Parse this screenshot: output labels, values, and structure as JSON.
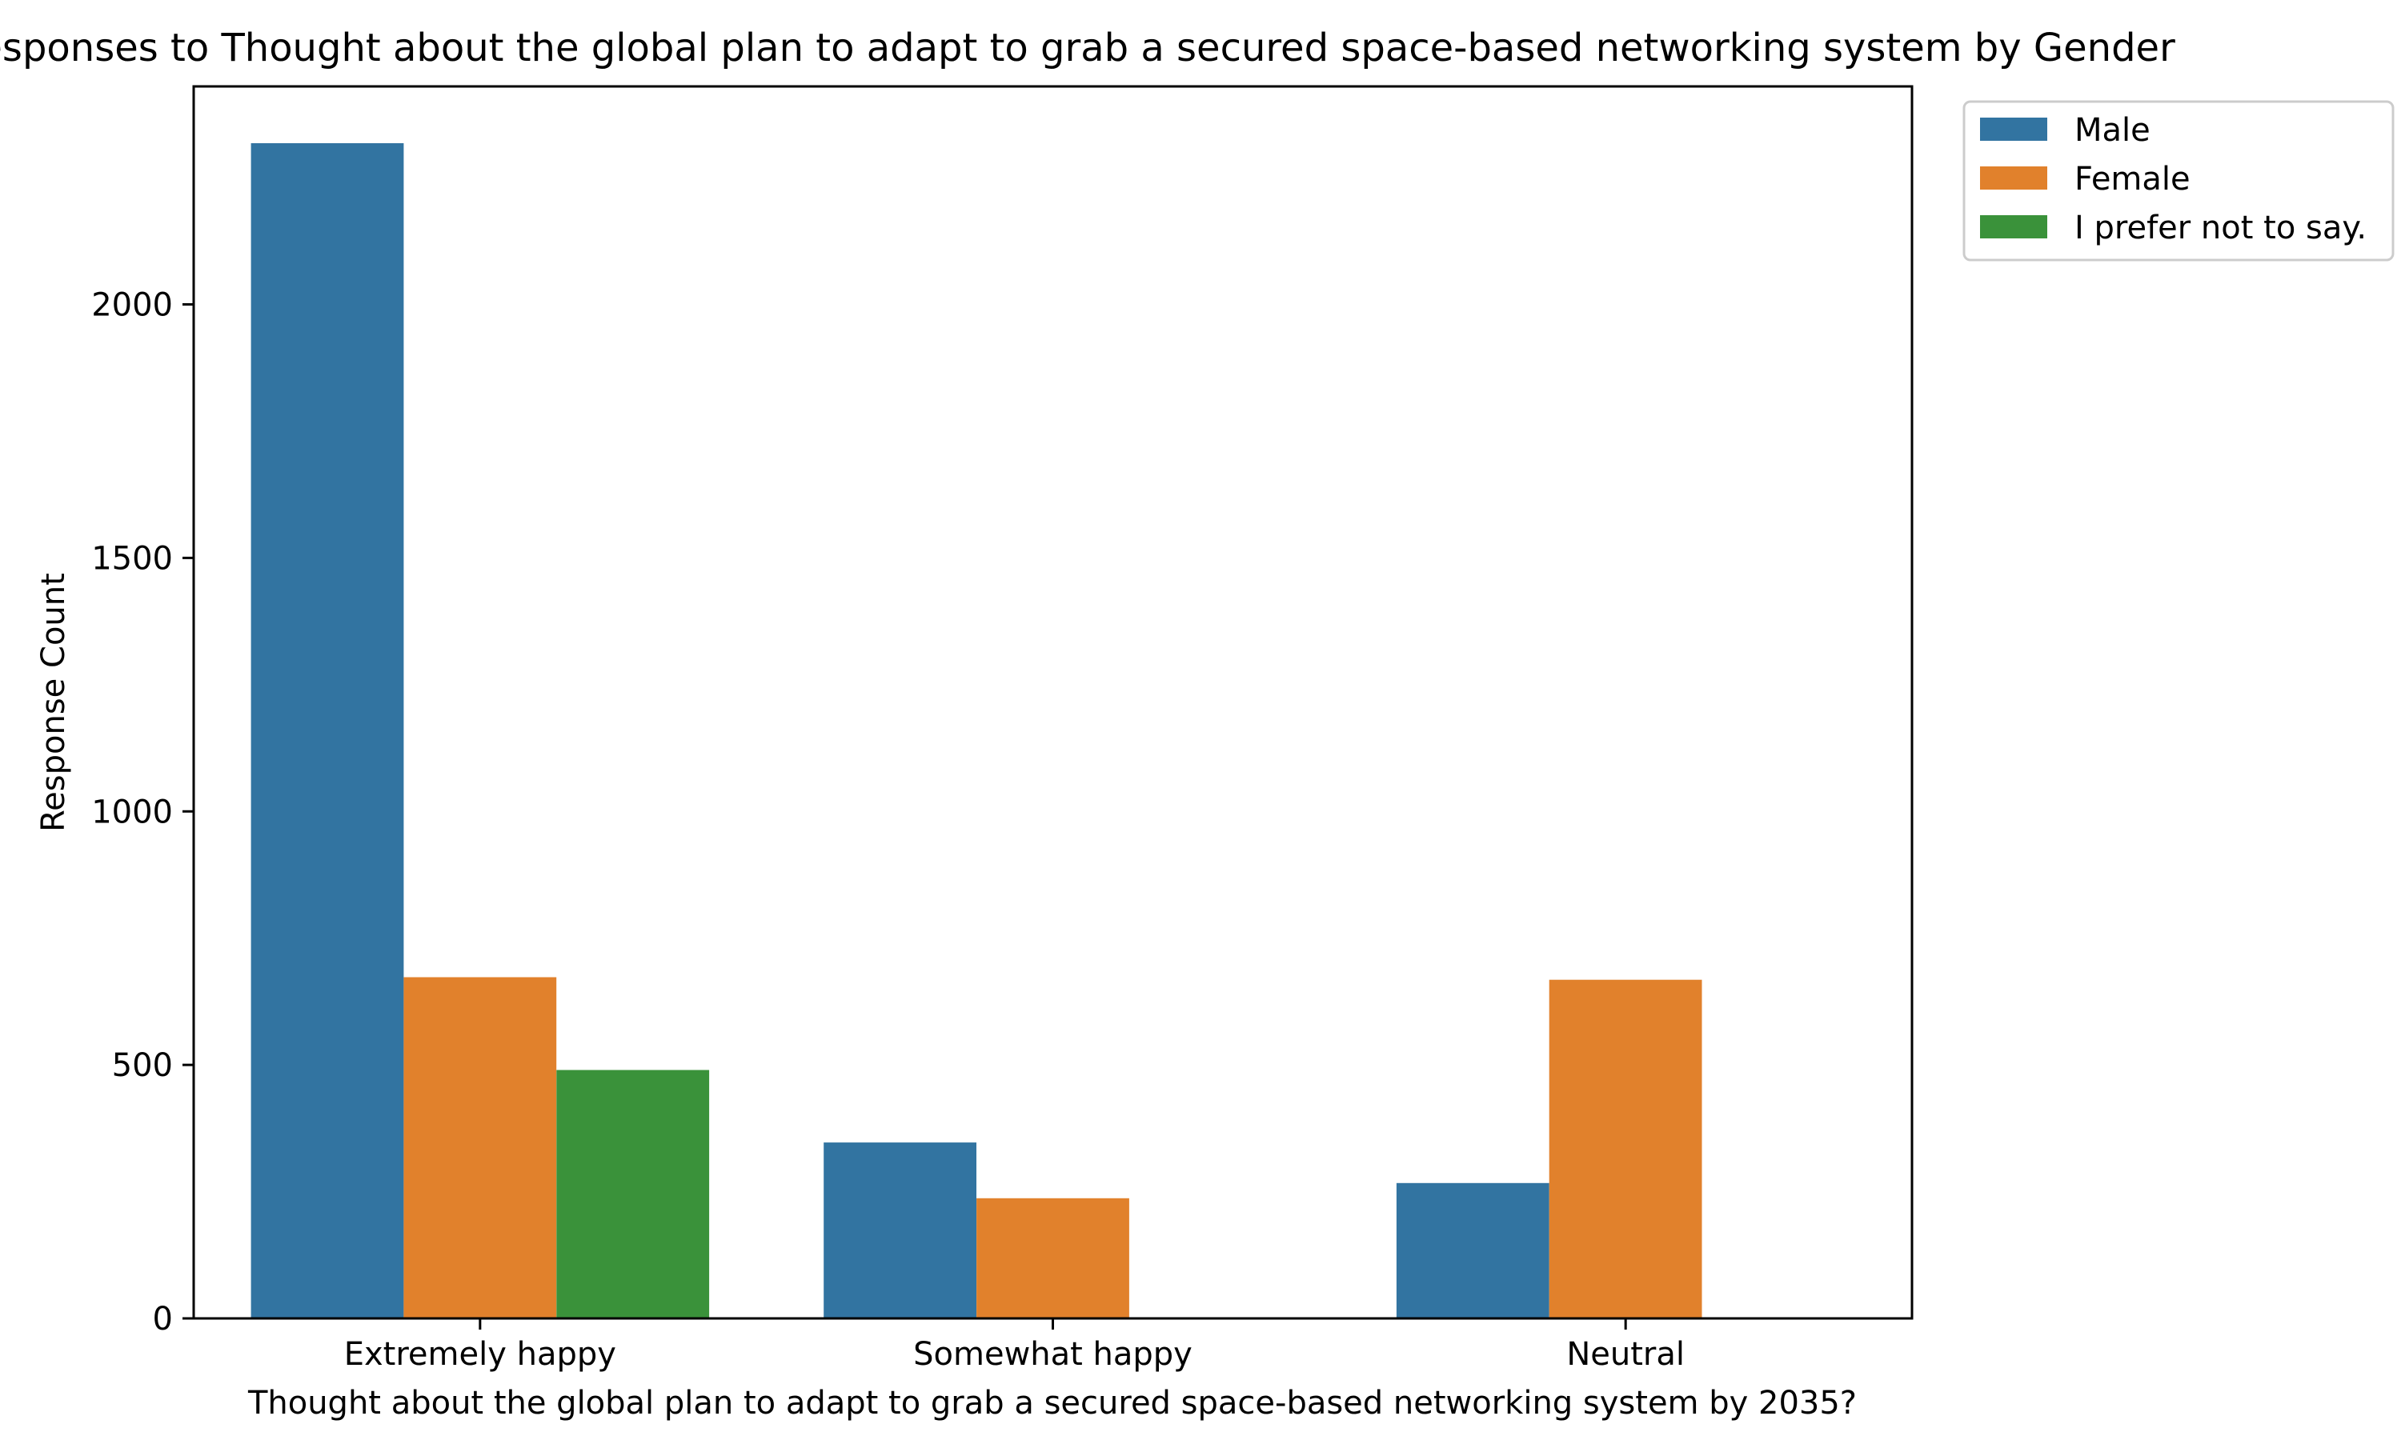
{
  "chart_data": {
    "type": "bar",
    "title": "Responses to Thought about the global plan to adapt to grab a secured space-based networking system by Gender",
    "xlabel": "Thought about the global plan to adapt to grab a secured space-based networking system by 2035?",
    "ylabel": "Response Count",
    "categories": [
      "Extremely happy",
      "Somewhat happy",
      "Neutral"
    ],
    "series": [
      {
        "name": "Male",
        "color": "#3274a1",
        "values": [
          2318,
          347,
          267
        ]
      },
      {
        "name": "Female",
        "color": "#e1812c",
        "values": [
          673,
          237,
          668
        ]
      },
      {
        "name": "I prefer not to say.",
        "color": "#3a923a",
        "values": [
          490,
          0,
          0
        ]
      }
    ],
    "ylim": [
      0,
      2430
    ],
    "yticks": [
      0,
      500,
      1000,
      1500,
      2000
    ],
    "grid": false,
    "legend_position": "outside-top-right"
  }
}
